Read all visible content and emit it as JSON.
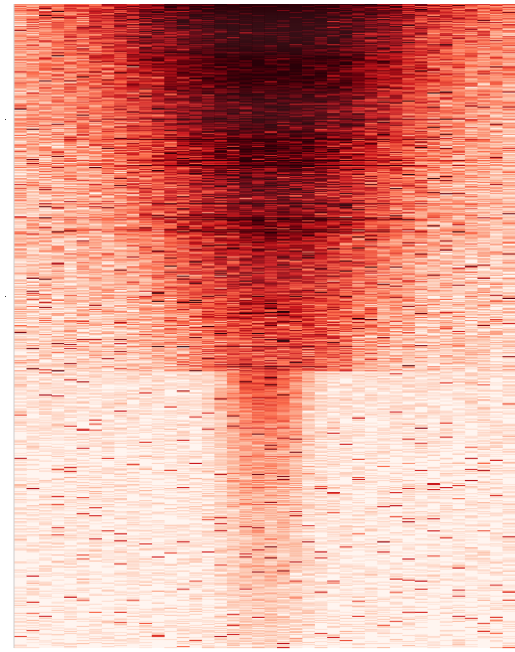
{
  "chart_data": {
    "type": "heatmap",
    "title": "",
    "xlabel": "",
    "ylabel": "",
    "grid": false,
    "legend": "none",
    "colormap": [
      "#fff5f0",
      "#fcbba1",
      "#fb6a4a",
      "#cb181d",
      "#67000d",
      "#2a0008"
    ],
    "n_bins": 40,
    "n_rows": 640,
    "center_bin": 20,
    "cluster_boundaries": [
      0.57,
      0.745
    ],
    "clusters": [
      {
        "id": 1,
        "row_fraction": [
          0.0,
          0.57
        ],
        "center_intensity": 0.85,
        "background_intensity": 0.22,
        "spread": 0.38
      },
      {
        "id": 2,
        "row_fraction": [
          0.57,
          0.745
        ],
        "center_intensity": 0.45,
        "background_intensity": 0.06,
        "spread": 0.1
      },
      {
        "id": 3,
        "row_fraction": [
          0.745,
          1.0
        ],
        "center_intensity": 0.2,
        "background_intensity": 0.04,
        "spread": 0.08
      }
    ]
  }
}
